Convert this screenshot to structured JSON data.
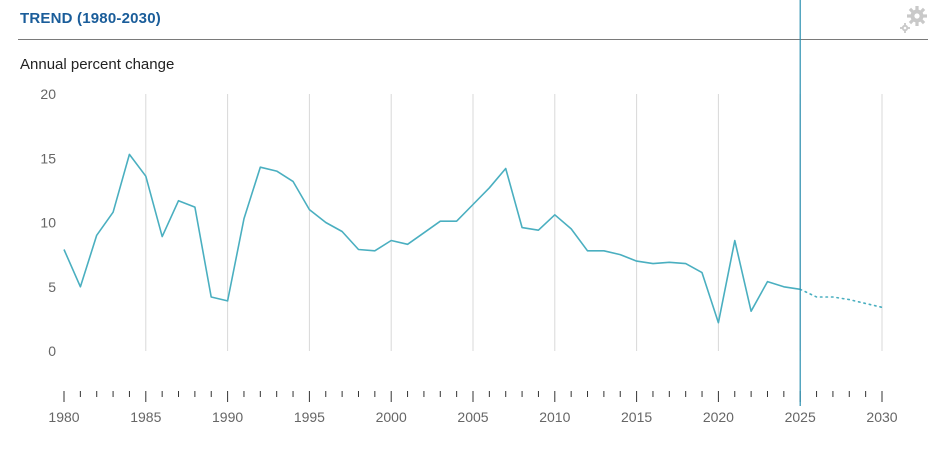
{
  "header": {
    "title": "TREND (1980-2030)",
    "settings_icon": "gear-icon"
  },
  "chart_data": {
    "type": "line",
    "title": "TREND (1980-2030)",
    "ylabel": "Annual percent change",
    "xlabel": "",
    "xlim": [
      1980,
      2030
    ],
    "ylim": [
      0,
      20
    ],
    "y_ticks": [
      0,
      5,
      10,
      15,
      20
    ],
    "x_ticks": [
      1980,
      1985,
      1990,
      1995,
      2000,
      2005,
      2010,
      2015,
      2020,
      2025,
      2030
    ],
    "grid": "vertical",
    "current_year_marker": 2025,
    "colors": {
      "line": "#4aafc0",
      "marker": "#2a8fb0",
      "grid": "#d8d8d8"
    },
    "series": [
      {
        "x": [
          1980,
          1981,
          1982,
          1983,
          1984,
          1985,
          1986,
          1987,
          1988,
          1989,
          1990,
          1991,
          1992,
          1993,
          1994,
          1995,
          1996,
          1997,
          1998,
          1999,
          2000,
          2001,
          2002,
          2003,
          2004,
          2005,
          2006,
          2007,
          2008,
          2009,
          2010,
          2011,
          2012,
          2013,
          2014,
          2015,
          2016,
          2017,
          2018,
          2019,
          2020,
          2021,
          2022,
          2023,
          2024,
          2025,
          2026,
          2027,
          2028,
          2029,
          2030
        ],
        "values": [
          7.9,
          5.0,
          9.0,
          10.8,
          15.3,
          13.6,
          8.9,
          11.7,
          11.2,
          4.2,
          3.9,
          10.3,
          14.3,
          14.0,
          13.2,
          11.0,
          10.0,
          9.3,
          7.9,
          7.8,
          8.6,
          8.3,
          9.2,
          10.1,
          10.1,
          11.4,
          12.7,
          14.2,
          9.6,
          9.4,
          10.6,
          9.5,
          7.8,
          7.8,
          7.5,
          7.0,
          6.8,
          6.9,
          6.8,
          6.1,
          2.2,
          8.6,
          3.1,
          5.4,
          5.0,
          4.8,
          4.2,
          4.2,
          4.0,
          3.7,
          3.4
        ],
        "projected_from": 2025
      }
    ]
  }
}
